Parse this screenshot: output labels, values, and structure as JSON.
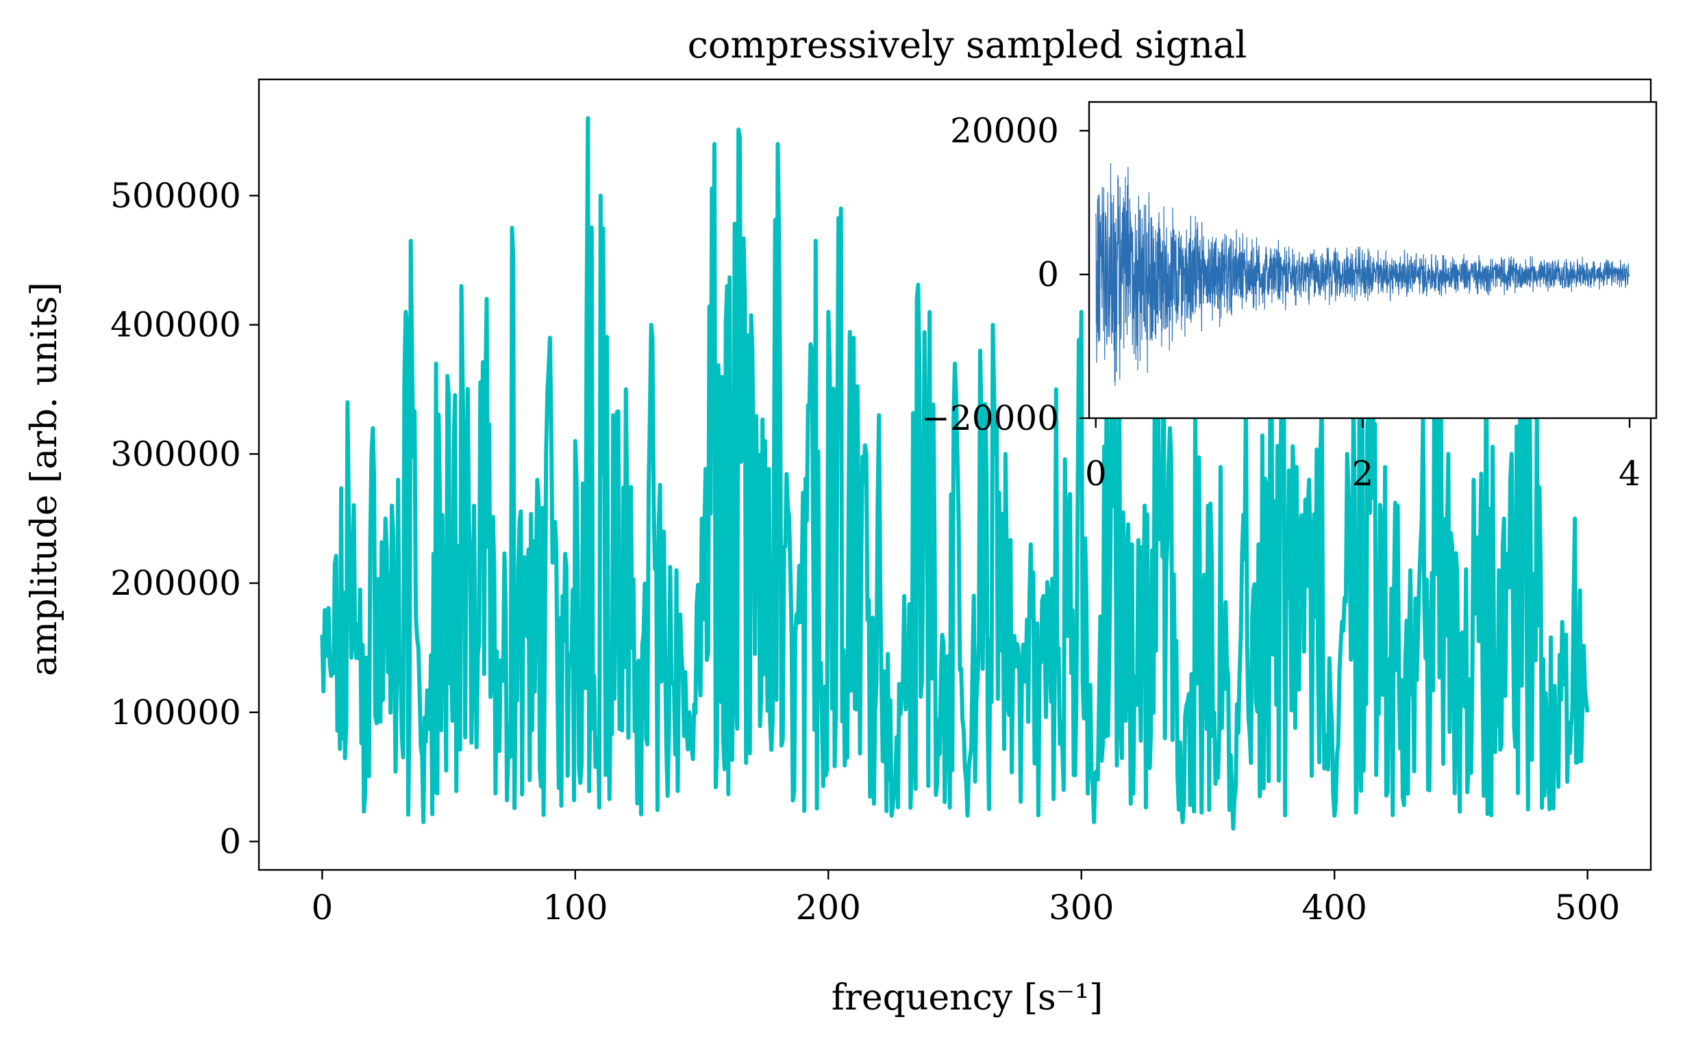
{
  "chart_data": [
    {
      "type": "line",
      "title": "compressively sampled signal",
      "xlabel": "frequency [s⁻¹]",
      "ylabel": "amplitude [arb. units]",
      "xlim": [
        -25,
        525
      ],
      "ylim": [
        -22000,
        590000
      ],
      "xticks": [
        0,
        100,
        200,
        300,
        400,
        500
      ],
      "xtick_labels": [
        "0",
        "100",
        "200",
        "300",
        "400",
        "500"
      ],
      "yticks": [
        0,
        100000,
        200000,
        300000,
        400000,
        500000
      ],
      "ytick_labels": [
        "0",
        "100000",
        "200000",
        "300000",
        "400000",
        "500000"
      ],
      "grid": false,
      "color": "#00BFBF",
      "series": [
        {
          "x": [
            0,
            5,
            10,
            15,
            20,
            25,
            30,
            35,
            40,
            45,
            50,
            55,
            60,
            65,
            70,
            75,
            80,
            85,
            90,
            95,
            100,
            105,
            110,
            115,
            120,
            125,
            130,
            135,
            140,
            145,
            150,
            155,
            160,
            165,
            170,
            175,
            180,
            185,
            190,
            195,
            200,
            205,
            210,
            215,
            220,
            225,
            230,
            235,
            240,
            245,
            250,
            255,
            260,
            265,
            270,
            275,
            280,
            285,
            290,
            295,
            300,
            305,
            310,
            315,
            320,
            325,
            330,
            335,
            340,
            345,
            350,
            355,
            360,
            365,
            370,
            375,
            380,
            385,
            390,
            395,
            400,
            405,
            410,
            415,
            420,
            425,
            430,
            435,
            440,
            445,
            450,
            455,
            460,
            465,
            470,
            475,
            480,
            485,
            490,
            495,
            500
          ],
          "values": [
            160000,
            215000,
            340000,
            195000,
            320000,
            250000,
            280000,
            465000,
            15000,
            370000,
            345000,
            430000,
            260000,
            420000,
            70000,
            475000,
            220000,
            280000,
            390000,
            190000,
            310000,
            560000,
            500000,
            330000,
            350000,
            140000,
            400000,
            240000,
            210000,
            100000,
            250000,
            540000,
            430000,
            545000,
            380000,
            310000,
            540000,
            210000,
            270000,
            465000,
            410000,
            490000,
            390000,
            300000,
            330000,
            20000,
            190000,
            420000,
            410000,
            160000,
            370000,
            20000,
            380000,
            400000,
            300000,
            150000,
            230000,
            190000,
            350000,
            260000,
            410000,
            15000,
            400000,
            350000,
            230000,
            260000,
            450000,
            320000,
            15000,
            340000,
            260000,
            290000,
            10000,
            340000,
            230000,
            480000,
            350000,
            290000,
            280000,
            340000,
            20000,
            300000,
            420000,
            470000,
            290000,
            260000,
            210000,
            330000,
            380000,
            300000,
            160000,
            280000,
            420000,
            210000,
            300000,
            440000,
            330000,
            25000,
            170000,
            250000,
            100000
          ]
        }
      ]
    },
    {
      "type": "line",
      "title": "",
      "xlabel": "",
      "ylabel": "",
      "xlim": [
        -0.05,
        4.2
      ],
      "ylim": [
        -20000,
        24000
      ],
      "xticks": [
        0,
        2,
        4
      ],
      "xtick_labels": [
        "0",
        "2",
        "4"
      ],
      "yticks": [
        -20000,
        0,
        20000
      ],
      "ytick_labels": [
        "−20000",
        "0",
        "20000"
      ],
      "grid": false,
      "color": "#2A6EB3",
      "series": [
        {
          "x": [
            0,
            0.25,
            0.5,
            0.75,
            1.0,
            1.25,
            1.5,
            1.75,
            2.0,
            2.25,
            2.5,
            2.75,
            3.0,
            3.25,
            3.5,
            3.75,
            4.0
          ],
          "envelope": [
            21000,
            17000,
            13000,
            9000,
            7000,
            6000,
            5000,
            4500,
            4200,
            3800,
            3500,
            3200,
            3000,
            2800,
            2600,
            2400,
            2200
          ]
        }
      ]
    }
  ]
}
